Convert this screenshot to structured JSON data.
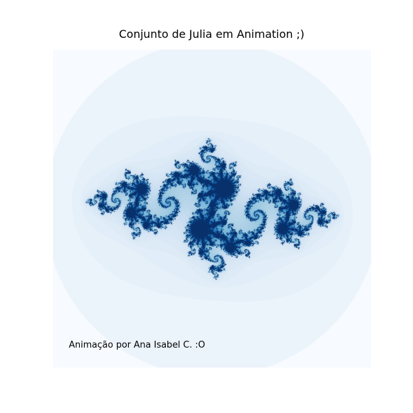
{
  "figure": {
    "title": "Conjunto de Julia em Animation ;)",
    "caption": "Animação por Ana Isabel C. :O"
  },
  "fractal": {
    "colormap": "Blues",
    "colors": {
      "background": "#f7fbff",
      "low": "#deebf7",
      "mid": "#6baed6",
      "high": "#08306b"
    }
  }
}
